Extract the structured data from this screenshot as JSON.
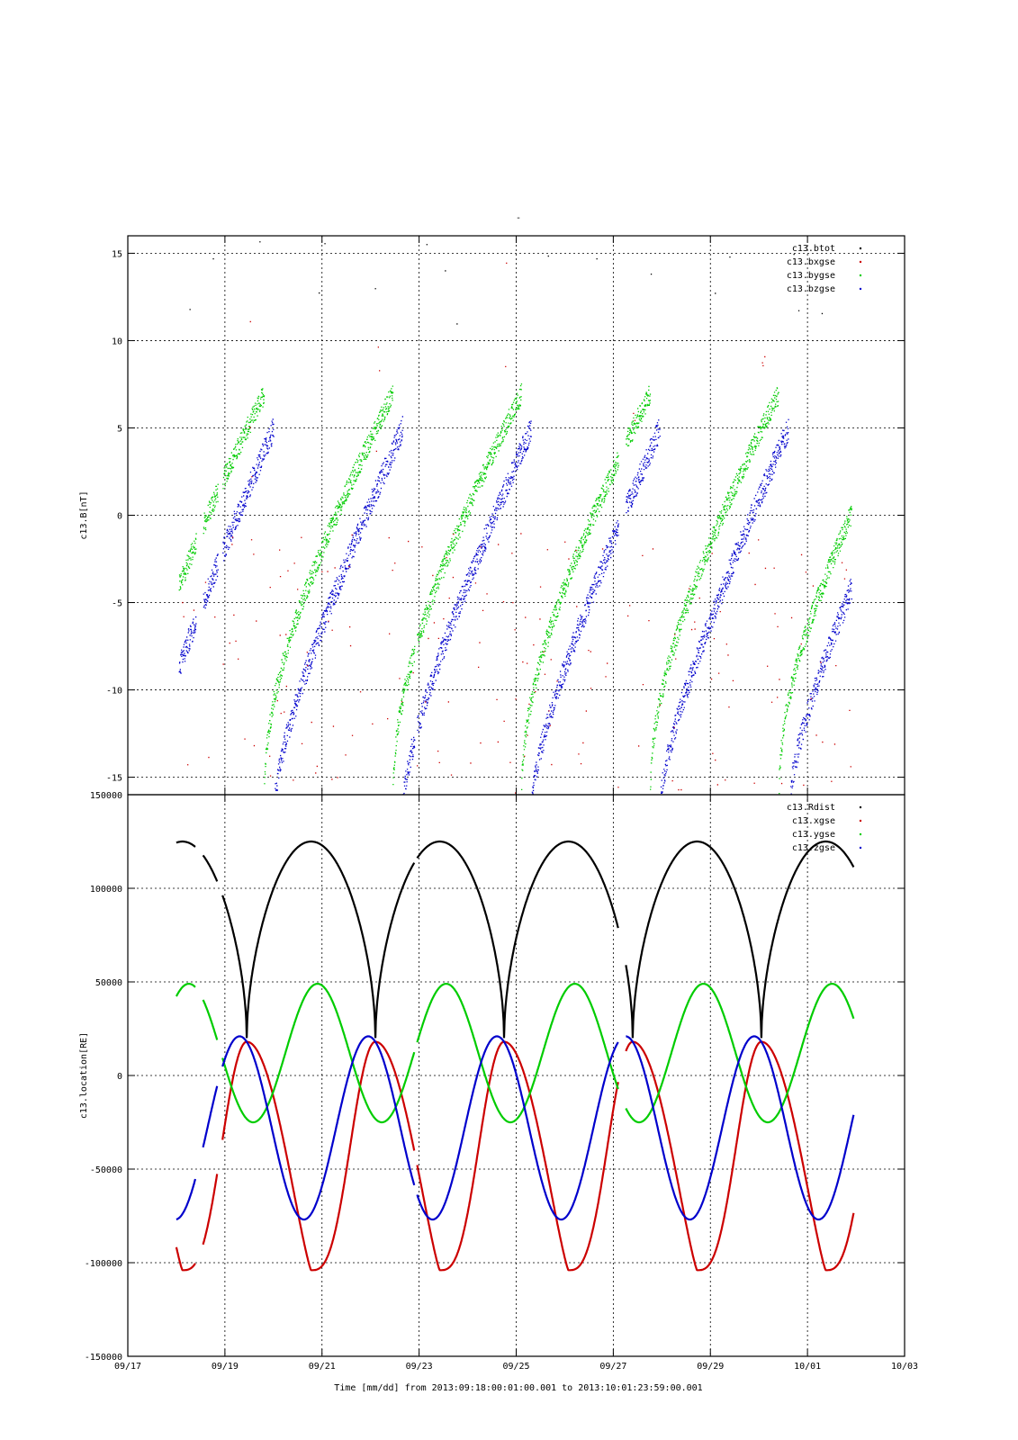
{
  "figure": {
    "top_title": "-",
    "xlabel": "Time [mm/dd]  from 2013:09:18:00:01:00.001  to  2013:10:01:23:59:00.001"
  },
  "chart_data": [
    {
      "type": "scatter",
      "ylabel": "c13.B[nT]",
      "xlim": [
        "09/17",
        "10/03"
      ],
      "ylim": [
        -16,
        16
      ],
      "yticks": [
        15,
        10,
        5,
        0,
        -5,
        -10,
        -15
      ],
      "grid": true,
      "legend_position": "top-right",
      "series": [
        {
          "name": "c13.btot",
          "color": "#000000"
        },
        {
          "name": "c13.bxgse",
          "color": "#cc0000"
        },
        {
          "name": "c13.bygse",
          "color": "#00cc00"
        },
        {
          "name": "c13.bzgse",
          "color": "#0000cc"
        }
      ]
    },
    {
      "type": "scatter",
      "ylabel": "c13.location[RE]",
      "xlim": [
        "09/17",
        "10/03"
      ],
      "ylim": [
        -150000,
        150000
      ],
      "yticks": [
        150000,
        100000,
        50000,
        0,
        -50000,
        -100000,
        -150000
      ],
      "xticks": [
        "09/17",
        "09/19",
        "09/21",
        "09/23",
        "09/25",
        "09/27",
        "09/29",
        "10/01",
        "10/03"
      ],
      "grid": true,
      "legend_position": "top-right",
      "series": [
        {
          "name": "c13.Rdist",
          "color": "#000000"
        },
        {
          "name": "c13.xgse",
          "color": "#cc0000"
        },
        {
          "name": "c13.ygse",
          "color": "#00cc00"
        },
        {
          "name": "c13.zgse",
          "color": "#0000cc"
        }
      ]
    }
  ]
}
